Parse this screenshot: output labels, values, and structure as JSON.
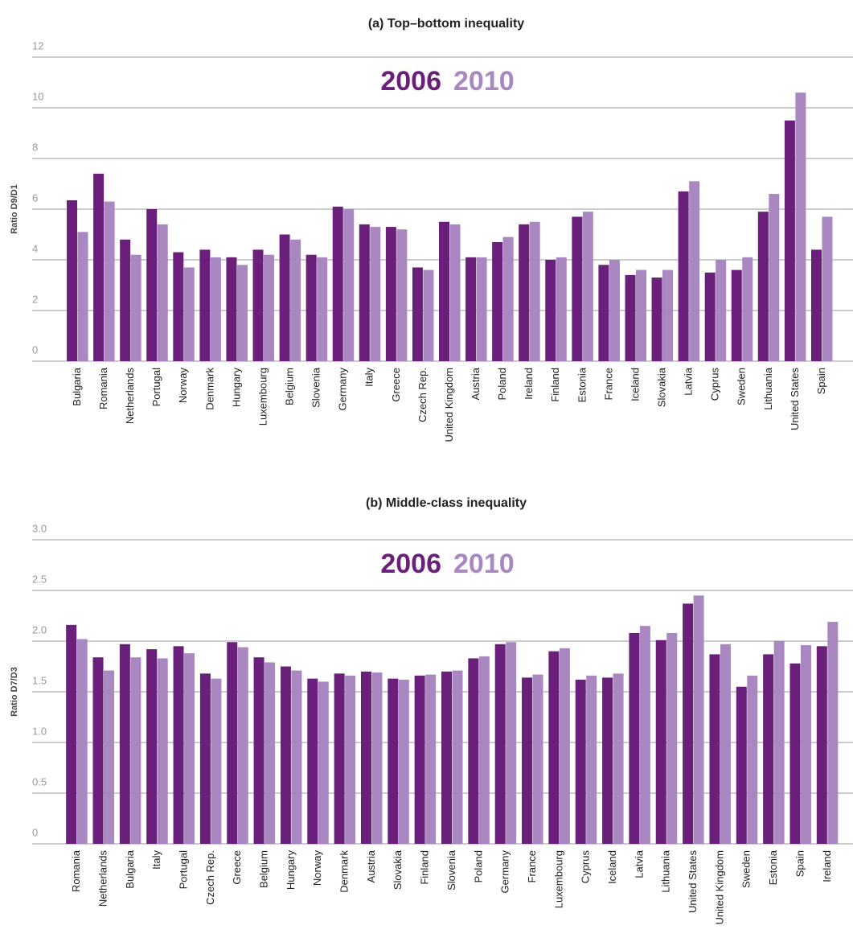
{
  "chart_data": [
    {
      "type": "bar",
      "title": "(a) Top–bottom inequality",
      "y_label": "Ratio D9/D1",
      "categories": [
        "Bulgaria",
        "Romania",
        "Netherlands",
        "Portugal",
        "Norway",
        "Denmark",
        "Hungary",
        "Luxembourg",
        "Belgium",
        "Slovenia",
        "Germany",
        "Italy",
        "Greece",
        "Czech Rep.",
        "United Kingdom",
        "Austria",
        "Poland",
        "Ireland",
        "Finland",
        "Estonia",
        "France",
        "Iceland",
        "Slovakia",
        "Latvia",
        "Cyprus",
        "Sweden",
        "Lithuania",
        "United States",
        "Spain"
      ],
      "series": [
        {
          "name": "2006",
          "color": "#6a1f7a",
          "values": [
            6.35,
            7.4,
            4.8,
            6.0,
            4.3,
            4.4,
            4.1,
            4.4,
            5.0,
            4.2,
            6.1,
            5.4,
            5.3,
            3.7,
            5.5,
            4.1,
            4.7,
            5.4,
            4.0,
            5.7,
            3.8,
            3.4,
            3.3,
            6.7,
            3.5,
            3.6,
            5.9,
            9.5,
            4.4
          ]
        },
        {
          "name": "2010",
          "color": "#a987c1",
          "values": [
            5.1,
            6.3,
            4.2,
            5.4,
            3.7,
            4.1,
            3.8,
            4.2,
            4.8,
            4.1,
            6.0,
            5.3,
            5.2,
            3.6,
            5.4,
            4.1,
            4.9,
            5.5,
            4.1,
            5.9,
            4.0,
            3.6,
            3.6,
            7.1,
            4.0,
            4.1,
            6.6,
            10.6,
            5.7
          ]
        }
      ],
      "ylim": [
        0,
        12
      ],
      "yticks": [
        0,
        2,
        4,
        6,
        8,
        10,
        12
      ],
      "grid": true
    },
    {
      "type": "bar",
      "title": "(b) Middle-class inequality",
      "y_label": "Ratio D7/D3",
      "categories": [
        "Romania",
        "Netherlands",
        "Bulgaria",
        "Italy",
        "Portugal",
        "Czech Rep.",
        "Greece",
        "Belgium",
        "Hungary",
        "Norway",
        "Denmark",
        "Austria",
        "Slovakia",
        "Finland",
        "Slovenia",
        "Poland",
        "Germany",
        "France",
        "Luxembourg",
        "Cyprus",
        "Iceland",
        "Latvia",
        "Lithuania",
        "United States",
        "United Kingdom",
        "Sweden",
        "Estonia",
        "Spain",
        "Ireland"
      ],
      "series": [
        {
          "name": "2006",
          "color": "#6a1f7a",
          "values": [
            2.16,
            1.84,
            1.97,
            1.92,
            1.95,
            1.68,
            1.99,
            1.84,
            1.75,
            1.63,
            1.68,
            1.7,
            1.63,
            1.66,
            1.7,
            1.83,
            1.97,
            1.64,
            1.9,
            1.62,
            1.64,
            2.08,
            2.01,
            2.37,
            1.87,
            1.55,
            1.87,
            1.78,
            1.95
          ]
        },
        {
          "name": "2010",
          "color": "#a987c1",
          "values": [
            2.02,
            1.71,
            1.84,
            1.83,
            1.88,
            1.63,
            1.94,
            1.79,
            1.71,
            1.6,
            1.66,
            1.69,
            1.62,
            1.67,
            1.71,
            1.85,
            1.99,
            1.67,
            1.93,
            1.66,
            1.68,
            2.15,
            2.08,
            2.45,
            1.97,
            1.66,
            2.0,
            1.96,
            2.19
          ]
        }
      ],
      "ylim": [
        0,
        3
      ],
      "yticks": [
        0,
        0.5,
        {
          "value": 1,
          "label": "1.0"
        },
        1.5,
        {
          "value": 2,
          "label": "2.0"
        },
        2.5,
        {
          "value": 3,
          "label": "3.0"
        }
      ],
      "grid": true
    }
  ]
}
